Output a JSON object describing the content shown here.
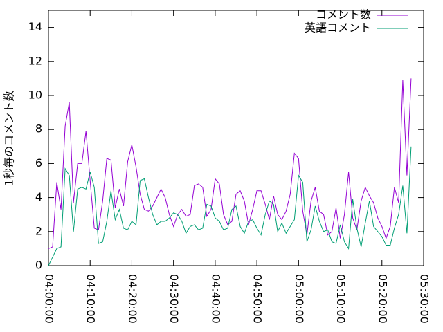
{
  "chart_data": {
    "type": "line",
    "ylabel": "1秒毎のコメント数",
    "x": [
      "04:00:00",
      "04:01:00",
      "04:02:00",
      "04:03:00",
      "04:04:00",
      "04:05:00",
      "04:06:00",
      "04:07:00",
      "04:08:00",
      "04:09:00",
      "04:10:00",
      "04:11:00",
      "04:12:00",
      "04:13:00",
      "04:14:00",
      "04:15:00",
      "04:16:00",
      "04:17:00",
      "04:18:00",
      "04:19:00",
      "04:20:00",
      "04:21:00",
      "04:22:00",
      "04:23:00",
      "04:24:00",
      "04:25:00",
      "04:26:00",
      "04:27:00",
      "04:28:00",
      "04:29:00",
      "04:30:00",
      "04:31:00",
      "04:32:00",
      "04:33:00",
      "04:34:00",
      "04:35:00",
      "04:36:00",
      "04:37:00",
      "04:38:00",
      "04:39:00",
      "04:40:00",
      "04:41:00",
      "04:42:00",
      "04:43:00",
      "04:44:00",
      "04:45:00",
      "04:46:00",
      "04:47:00",
      "04:48:00",
      "04:49:00",
      "04:50:00",
      "04:51:00",
      "04:52:00",
      "04:53:00",
      "04:54:00",
      "04:55:00",
      "04:56:00",
      "04:57:00",
      "04:58:00",
      "04:59:00",
      "05:00:00",
      "05:01:00",
      "05:02:00",
      "05:03:00",
      "05:04:00",
      "05:05:00",
      "05:06:00",
      "05:07:00",
      "05:08:00",
      "05:09:00",
      "05:10:00",
      "05:11:00",
      "05:12:00",
      "05:13:00",
      "05:14:00",
      "05:15:00",
      "05:16:00",
      "05:17:00",
      "05:18:00",
      "05:19:00",
      "05:20:00",
      "05:21:00",
      "05:22:00",
      "05:23:00",
      "05:24:00",
      "05:25:00",
      "05:26:00",
      "05:27:00"
    ],
    "series": [
      {
        "name": "コメント数",
        "color": "#9400d3",
        "values": [
          1.0,
          1.1,
          4.9,
          3.3,
          8.2,
          9.6,
          3.7,
          6.0,
          6.0,
          7.9,
          5.0,
          2.2,
          2.1,
          3.8,
          6.3,
          6.2,
          3.4,
          4.5,
          3.5,
          6.1,
          7.1,
          5.8,
          4.2,
          3.3,
          3.2,
          3.5,
          4.0,
          4.5,
          4.0,
          3.0,
          2.3,
          3.0,
          3.3,
          2.9,
          3.0,
          4.7,
          4.8,
          4.6,
          2.9,
          3.3,
          5.1,
          4.8,
          3.0,
          2.4,
          2.6,
          4.2,
          4.4,
          3.8,
          2.4,
          3.3,
          4.4,
          4.4,
          3.6,
          2.7,
          4.1,
          3.0,
          2.7,
          3.2,
          4.2,
          6.6,
          6.3,
          3.2,
          1.8,
          3.8,
          4.6,
          3.2,
          3.0,
          1.8,
          2.0,
          3.4,
          1.6,
          3.0,
          5.5,
          2.8,
          2.1,
          3.8,
          4.6,
          4.1,
          3.7,
          2.8,
          2.3,
          1.6,
          2.3,
          4.6,
          3.7,
          10.9,
          5.3,
          11.0
        ]
      },
      {
        "name": "英語コメント",
        "color": "#009e73",
        "values": [
          0.0,
          0.5,
          1.0,
          1.1,
          5.7,
          5.3,
          2.0,
          4.5,
          4.6,
          4.5,
          5.5,
          4.6,
          1.3,
          1.4,
          2.6,
          4.4,
          2.7,
          3.3,
          2.2,
          2.1,
          2.6,
          2.4,
          5.0,
          5.1,
          4.0,
          3.0,
          2.4,
          2.6,
          2.6,
          2.8,
          3.1,
          3.0,
          2.6,
          1.9,
          2.3,
          2.4,
          2.1,
          2.2,
          3.6,
          3.5,
          2.8,
          2.6,
          2.1,
          2.2,
          3.3,
          3.5,
          2.3,
          1.9,
          2.6,
          2.7,
          2.2,
          1.8,
          3.0,
          3.8,
          3.6,
          2.0,
          2.5,
          1.9,
          2.3,
          2.7,
          5.3,
          4.9,
          1.4,
          2.1,
          3.5,
          2.6,
          2.0,
          2.1,
          1.4,
          1.3,
          2.4,
          1.4,
          1.0,
          3.9,
          2.2,
          1.1,
          2.5,
          3.8,
          2.3,
          2.0,
          1.7,
          1.2,
          1.2,
          2.2,
          3.0,
          4.7,
          1.9,
          7.0
        ]
      }
    ],
    "xlim": [
      "04:00:00",
      "05:30:00"
    ],
    "xticks": [
      "04:00:00",
      "04:10:00",
      "04:20:00",
      "04:30:00",
      "04:40:00",
      "04:50:00",
      "05:00:00",
      "05:10:00",
      "05:20:00",
      "05:30:00"
    ],
    "ylim": [
      0,
      15
    ],
    "yticks": [
      0,
      2,
      4,
      6,
      8,
      10,
      12,
      14
    ],
    "legend": "top-right"
  }
}
